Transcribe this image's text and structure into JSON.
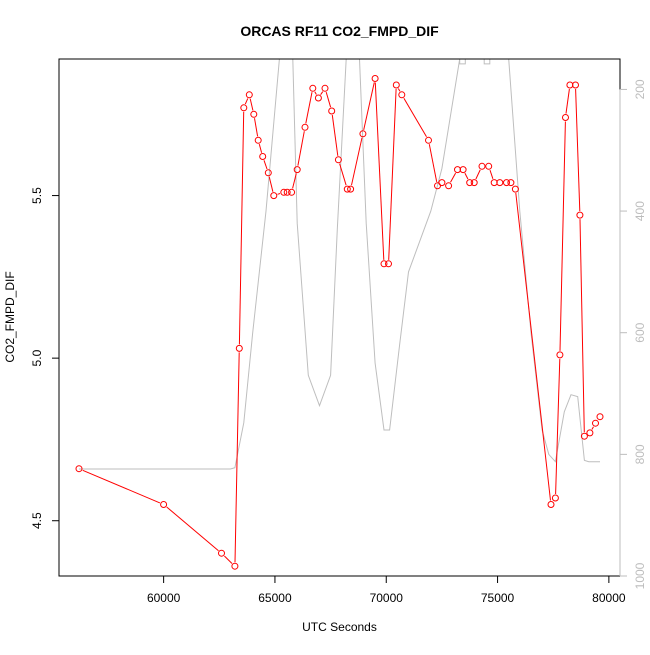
{
  "chart_data": {
    "type": "line",
    "title": "ORCAS RF11 CO2_FMPD_DIF",
    "xlabel": "UTC Seconds",
    "ylabel": "CO2_FMPD_DIF",
    "xlim": [
      55300,
      80500
    ],
    "ylim": [
      4.33,
      5.92
    ],
    "y2lim": [
      1000,
      150
    ],
    "xticks": [
      60000,
      65000,
      70000,
      75000,
      80000
    ],
    "yticks": [
      4.5,
      5.0,
      5.5
    ],
    "y2ticks": [
      200,
      400,
      600,
      800,
      1000
    ],
    "grid": false,
    "colors": {
      "series": "#ff0000",
      "secondary": "#bebebe"
    },
    "series": [
      {
        "role": "primary",
        "x": [
          56200,
          60000,
          62600,
          63200,
          63400,
          63600,
          63850,
          64050,
          64250,
          64450,
          64700,
          64950,
          65400,
          65550,
          65750,
          66000,
          66350,
          66700,
          66950,
          67250,
          67550,
          67850,
          68250,
          68400,
          68950,
          69500,
          69900,
          70100,
          70450,
          70700,
          71900,
          72300,
          72500,
          72800,
          73200,
          73450,
          73750,
          73950,
          74300,
          74600,
          74850,
          75100,
          75400,
          75600,
          75800,
          77400,
          77600,
          77800,
          78050,
          78250,
          78500,
          78700,
          78900,
          79150,
          79400,
          79600
        ],
        "y": [
          4.66,
          4.55,
          4.4,
          4.36,
          5.03,
          5.77,
          5.81,
          5.75,
          5.67,
          5.62,
          5.57,
          5.5,
          5.51,
          5.51,
          5.51,
          5.58,
          5.71,
          5.83,
          5.8,
          5.83,
          5.76,
          5.61,
          5.52,
          5.52,
          5.69,
          5.86,
          5.29,
          5.29,
          5.84,
          5.81,
          5.67,
          5.53,
          5.54,
          5.53,
          5.58,
          5.58,
          5.54,
          5.54,
          5.59,
          5.59,
          5.54,
          5.54,
          5.54,
          5.54,
          5.52,
          4.55,
          4.57,
          5.01,
          5.74,
          5.84,
          5.84,
          5.44,
          4.76,
          4.77,
          4.8,
          4.82
        ]
      },
      {
        "role": "secondary",
        "x": [
          56200,
          63000,
          63200,
          63600,
          64000,
          64600,
          65200,
          65800,
          66000,
          66500,
          67000,
          67500,
          67800,
          68200,
          68800,
          69100,
          69500,
          69900,
          70150,
          70600,
          71000,
          72000,
          72500,
          73300,
          73300,
          73550,
          73550,
          74400,
          74400,
          74650,
          74650,
          75500,
          76000,
          76500,
          77000,
          77300,
          77600,
          78000,
          78300,
          78600,
          78900,
          79100,
          79600
        ],
        "y": [
          824,
          824,
          822,
          748,
          600,
          400,
          150,
          150,
          420,
          670,
          720,
          670,
          430,
          150,
          150,
          420,
          650,
          760,
          760,
          620,
          500,
          400,
          330,
          150,
          158,
          158,
          150,
          150,
          158,
          158,
          150,
          150,
          400,
          600,
          760,
          800,
          812,
          730,
          702,
          705,
          810,
          812,
          812
        ]
      }
    ]
  }
}
